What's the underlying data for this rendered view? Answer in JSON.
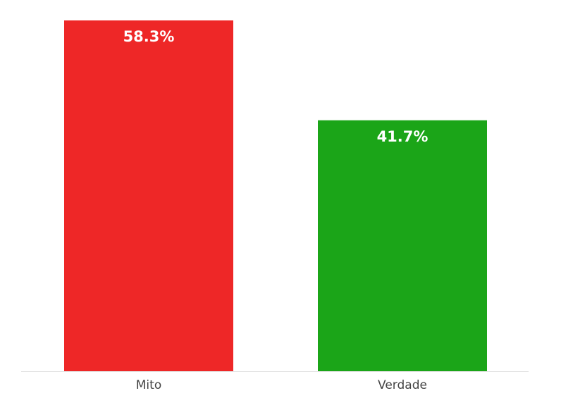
{
  "chart_data": {
    "type": "bar",
    "categories": [
      "Mito",
      "Verdade"
    ],
    "values": [
      58.3,
      41.7
    ],
    "value_labels": [
      "58.3%",
      "41.7%"
    ],
    "colors": [
      "#ee2727",
      "#1ba518"
    ]
  }
}
